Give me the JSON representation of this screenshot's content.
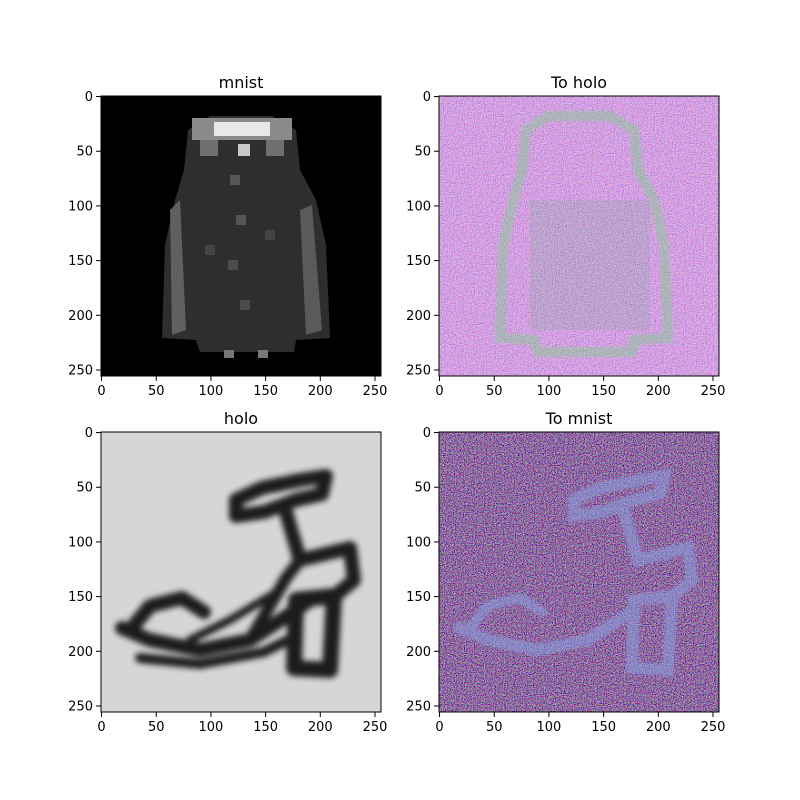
{
  "figure": {
    "panels": [
      {
        "title": "mnist",
        "style": "mnist"
      },
      {
        "title": "To holo",
        "style": "noise_a"
      },
      {
        "title": "holo",
        "style": "holo"
      },
      {
        "title": "To mnist",
        "style": "noise_b"
      }
    ]
  },
  "chart_data": [
    {
      "type": "heatmap",
      "title": "mnist",
      "xlabel": "",
      "ylabel": "",
      "xlim": [
        0,
        255
      ],
      "ylim": [
        255,
        0
      ],
      "x_ticks": [
        0,
        50,
        100,
        150,
        200,
        250
      ],
      "y_ticks": [
        0,
        50,
        100,
        150,
        200,
        250
      ],
      "colormap": "grayscale",
      "content": "upsampled 28x28 grayscale image of a coat"
    },
    {
      "type": "heatmap",
      "title": "To holo",
      "xlabel": "",
      "ylabel": "",
      "xlim": [
        0,
        255
      ],
      "ylim": [
        255,
        0
      ],
      "x_ticks": [
        0,
        50,
        100,
        150,
        200,
        250
      ],
      "y_ticks": [
        0,
        50,
        100,
        150,
        200,
        250
      ],
      "colormap": "rgb",
      "content": "noisy colored rendering of the coat"
    },
    {
      "type": "heatmap",
      "title": "holo",
      "xlabel": "",
      "ylabel": "",
      "xlim": [
        0,
        255
      ],
      "ylim": [
        255,
        0
      ],
      "x_ticks": [
        0,
        50,
        100,
        150,
        200,
        250
      ],
      "y_ticks": [
        0,
        50,
        100,
        150,
        200,
        250
      ],
      "colormap": "grayscale",
      "content": "blurred hologram of a high-heeled sandal on light gray background"
    },
    {
      "type": "heatmap",
      "title": "To mnist",
      "xlabel": "",
      "ylabel": "",
      "xlim": [
        0,
        255
      ],
      "ylim": [
        255,
        0
      ],
      "x_ticks": [
        0,
        50,
        100,
        150,
        200,
        250
      ],
      "y_ticks": [
        0,
        50,
        100,
        150,
        200,
        250
      ],
      "colormap": "rgb",
      "content": "noisy colored rendering of the sandal"
    }
  ]
}
